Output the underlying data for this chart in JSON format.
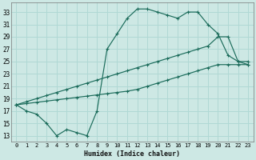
{
  "xlabel": "Humidex (Indice chaleur)",
  "background_color": "#cde8e4",
  "grid_color": "#b0d8d4",
  "line_color": "#1a6b5a",
  "xlim": [
    -0.5,
    23.5
  ],
  "ylim": [
    12,
    34.5
  ],
  "xticks": [
    0,
    1,
    2,
    3,
    4,
    5,
    6,
    7,
    8,
    9,
    10,
    11,
    12,
    13,
    14,
    15,
    16,
    17,
    18,
    19,
    20,
    21,
    22,
    23
  ],
  "yticks": [
    13,
    15,
    17,
    19,
    21,
    23,
    25,
    27,
    29,
    31,
    33
  ],
  "line1_x": [
    0,
    1,
    2,
    3,
    4,
    5,
    6,
    7,
    8,
    9,
    10,
    11,
    12,
    13,
    14,
    15,
    16,
    17,
    18,
    19,
    20,
    21,
    22,
    23
  ],
  "line1_y": [
    18,
    17,
    16.5,
    15,
    13,
    14,
    13.5,
    13,
    17,
    27,
    29.5,
    32,
    33.5,
    33.5,
    33,
    32.5,
    32,
    33,
    33,
    31,
    29.5,
    26,
    25,
    24.5
  ],
  "line2_x": [
    0,
    1,
    2,
    3,
    4,
    5,
    6,
    7,
    8,
    9,
    10,
    11,
    12,
    13,
    14,
    15,
    16,
    17,
    18,
    19,
    20,
    21,
    22,
    23
  ],
  "line2_y": [
    18,
    18.5,
    19,
    19.5,
    20,
    20.5,
    21,
    21.5,
    22,
    22.5,
    23,
    23.5,
    24,
    24.5,
    25,
    25.5,
    26,
    26.5,
    27,
    27.5,
    29,
    29,
    25,
    25
  ],
  "line3_x": [
    0,
    1,
    2,
    3,
    4,
    5,
    6,
    7,
    8,
    9,
    10,
    11,
    12,
    13,
    14,
    15,
    16,
    17,
    18,
    19,
    20,
    21,
    22,
    23
  ],
  "line3_y": [
    18,
    18.2,
    18.4,
    18.6,
    18.8,
    19,
    19.2,
    19.4,
    19.6,
    19.8,
    20,
    20.2,
    20.5,
    21,
    21.5,
    22,
    22.5,
    23,
    23.5,
    24,
    24.5,
    24.5,
    24.5,
    24.5
  ]
}
